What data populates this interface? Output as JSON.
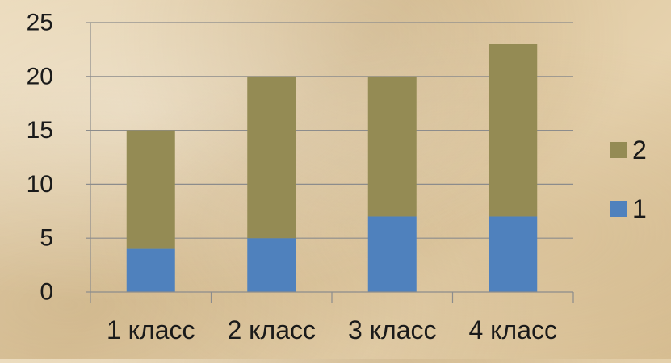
{
  "chart_data": {
    "type": "bar",
    "stacked": true,
    "categories": [
      "1 класс",
      "2 класс",
      "3 класс",
      "4 класс"
    ],
    "series": [
      {
        "name": "1",
        "values": [
          4,
          5,
          7,
          7
        ],
        "color": "#4f81bd"
      },
      {
        "name": "2",
        "values": [
          11,
          15,
          13,
          16
        ],
        "color": "#948b54"
      }
    ],
    "ylim": [
      0,
      25
    ],
    "yticks": [
      0,
      5,
      10,
      15,
      20,
      25
    ],
    "grid": true,
    "legend": "right",
    "legend_order": [
      "2",
      "1"
    ]
  }
}
